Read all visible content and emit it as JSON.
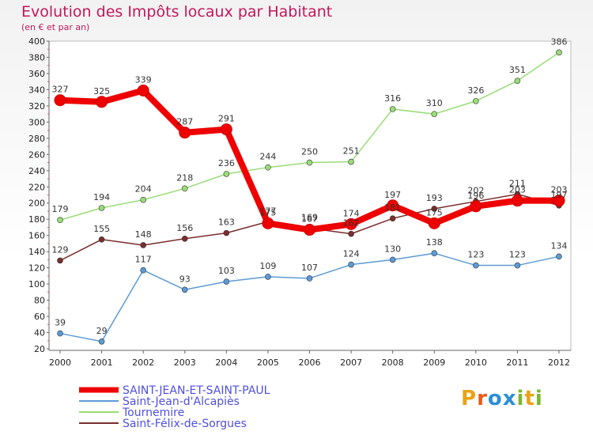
{
  "header": {
    "title": "Evolution des Impôts locaux par Habitant",
    "subtitle": "(en € et par an)"
  },
  "brand": {
    "text": "Proxiti",
    "colors": [
      "#e8a317",
      "#e85d17",
      "#2a8fd6",
      "#2a8fd6",
      "#7cb82f",
      "#e8a317",
      "#7cb82f"
    ]
  },
  "chart_data": {
    "type": "line",
    "categories": [
      "2000",
      "2001",
      "2002",
      "2003",
      "2004",
      "2005",
      "2006",
      "2007",
      "2008",
      "2009",
      "2010",
      "2011",
      "2012"
    ],
    "ylim": [
      20,
      400
    ],
    "yticks": [
      20,
      40,
      60,
      80,
      100,
      120,
      140,
      160,
      180,
      200,
      220,
      240,
      260,
      280,
      300,
      320,
      340,
      360,
      380,
      400
    ],
    "grid": false,
    "legend": "bottom-left",
    "series": [
      {
        "name": "SAINT-JEAN-ET-SAINT-PAUL",
        "color": "#ee0000",
        "values": [
          327,
          325,
          339,
          287,
          291,
          175,
          167,
          174,
          197,
          175,
          196,
          203,
          203
        ],
        "labels": [
          "327",
          "325",
          "339",
          "287",
          "291",
          "175",
          "167",
          "174",
          "197",
          "175",
          "196",
          "203",
          "203"
        ]
      },
      {
        "name": "Saint-Jean-d'Alcapiès",
        "color": "#5b9bd5",
        "values": [
          39,
          29,
          117,
          93,
          103,
          109,
          107,
          124,
          130,
          138,
          123,
          123,
          134
        ],
        "labels": [
          "39",
          "29",
          "117",
          "93",
          "103",
          "109",
          "107",
          "124",
          "130",
          "138",
          "123",
          "123",
          "134"
        ]
      },
      {
        "name": "Tournemire",
        "color": "#99dd77",
        "values": [
          179,
          194,
          204,
          218,
          236,
          244,
          250,
          251,
          316,
          310,
          326,
          351,
          386
        ],
        "labels": [
          "179",
          "194",
          "204",
          "218",
          "236",
          "244",
          "250",
          "251",
          "316",
          "310",
          "326",
          "351",
          "386"
        ]
      },
      {
        "name": "Saint-Félix-de-Sorgues",
        "color": "#7b2d2d",
        "values": [
          129,
          155,
          148,
          156,
          163,
          177,
          169,
          162,
          181,
          193,
          202,
          211,
          197
        ],
        "labels": [
          "129",
          "155",
          "148",
          "156",
          "163",
          "177",
          "169",
          "162",
          "181",
          "193",
          "202",
          "211",
          "197"
        ]
      }
    ]
  }
}
